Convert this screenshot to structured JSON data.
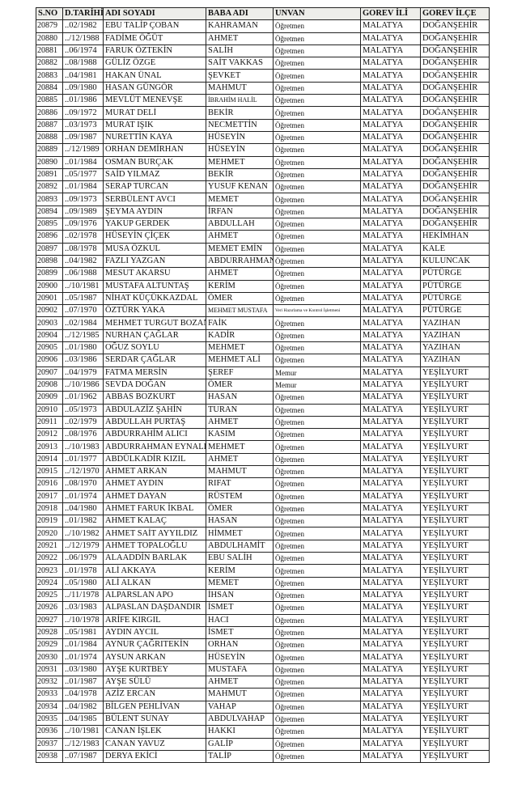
{
  "headers": [
    "S.NO",
    "D.TARİHİ",
    "ADI SOYADI",
    "BABA ADI",
    "UNVAN",
    "GOREV İLİ",
    "GOREV İLÇE"
  ],
  "rows": [
    [
      "20879",
      "..02/1982",
      "EBU TALİP ÇOBAN",
      "KAHRAMAN",
      "Öğretmen",
      "MALATYA",
      "DOĞANŞEHİR"
    ],
    [
      "20880",
      "../12/1988",
      "FADİME ÖĞÜT",
      "AHMET",
      "Öğretmen",
      "MALATYA",
      "DOĞANŞEHİR"
    ],
    [
      "20881",
      "..06/1974",
      "FARUK ÖZTEKİN",
      "SALİH",
      "Öğretmen",
      "MALATYA",
      "DOĞANŞEHİR"
    ],
    [
      "20882",
      "..08/1988",
      "GÜLİZ ÖZGE",
      "SAİT VAKKAS",
      "Öğretmen",
      "MALATYA",
      "DOĞANŞEHİR"
    ],
    [
      "20883",
      "..04/1981",
      "HAKAN ÜNAL",
      "ŞEVKET",
      "Öğretmen",
      "MALATYA",
      "DOĞANŞEHİR"
    ],
    [
      "20884",
      "..09/1980",
      "HASAN GÜNGÖR",
      "MAHMUT",
      "Öğretmen",
      "MALATYA",
      "DOĞANŞEHİR"
    ],
    [
      "20885",
      "..01/1986",
      "MEVLÜT MENEVŞE",
      "İBRAHİM HALİL",
      "Öğretmen",
      "MALATYA",
      "DOĞANŞEHİR"
    ],
    [
      "20886",
      "..09/1972",
      "MURAT DELİ",
      "BEKİR",
      "Öğretmen",
      "MALATYA",
      "DOĞANŞEHİR"
    ],
    [
      "20887",
      "..03/1973",
      "MURAT IŞIK",
      "NECMETTİN",
      "Öğretmen",
      "MALATYA",
      "DOĞANŞEHİR"
    ],
    [
      "20888",
      "..09/1987",
      "NURETTİN KAYA",
      "HÜSEYİN",
      "Öğretmen",
      "MALATYA",
      "DOĞANŞEHİR"
    ],
    [
      "20889",
      "../12/1989",
      "ORHAN DEMİRHAN",
      "HÜSEYİN",
      "Öğretmen",
      "MALATYA",
      "DOĞANŞEHİR"
    ],
    [
      "20890",
      "..01/1984",
      "OSMAN BURÇAK",
      "MEHMET",
      "Öğretmen",
      "MALATYA",
      "DOĞANŞEHİR"
    ],
    [
      "20891",
      "..05/1977",
      "SAİD YILMAZ",
      "BEKİR",
      "Öğretmen",
      "MALATYA",
      "DOĞANŞEHİR"
    ],
    [
      "20892",
      "..01/1984",
      "SERAP TURCAN",
      "YUSUF KENAN",
      "Öğretmen",
      "MALATYA",
      "DOĞANŞEHİR"
    ],
    [
      "20893",
      "..09/1973",
      "SERBÜLENT AVCI",
      "MEMET",
      "Öğretmen",
      "MALATYA",
      "DOĞANŞEHİR"
    ],
    [
      "20894",
      "..09/1989",
      "ŞEYMA AYDIN",
      "İRFAN",
      "Öğretmen",
      "MALATYA",
      "DOĞANŞEHİR"
    ],
    [
      "20895",
      "..09/1976",
      "YAKUP GERDEK",
      "ABDULLAH",
      "Öğretmen",
      "MALATYA",
      "DOĞANŞEHİR"
    ],
    [
      "20896",
      "..02/1978",
      "HÜSEYİN ÇİÇEK",
      "AHMET",
      "Öğretmen",
      "MALATYA",
      "HEKİMHAN"
    ],
    [
      "20897",
      "..08/1978",
      "MUSA ÖZKUL",
      "MEMET EMİN",
      "Öğretmen",
      "MALATYA",
      "KALE"
    ],
    [
      "20898",
      "..04/1982",
      "FAZLI YAZGAN",
      "ABDURRAHMAN",
      "Öğretmen",
      "MALATYA",
      "KULUNCAK"
    ],
    [
      "20899",
      "..06/1988",
      "MESUT AKARSU",
      "AHMET",
      "Öğretmen",
      "MALATYA",
      "PÜTÜRGE"
    ],
    [
      "20900",
      "../10/1981",
      "MUSTAFA ALTUNTAŞ",
      "KERİM",
      "Öğretmen",
      "MALATYA",
      "PÜTÜRGE"
    ],
    [
      "20901",
      "..05/1987",
      "NİHAT KÜÇÜKKAZDAL",
      "ÖMER",
      "Öğretmen",
      "MALATYA",
      "PÜTÜRGE"
    ],
    [
      "20902",
      "..07/1970",
      "ÖZTÜRK YAKA",
      "MEHMET MUSTAFA",
      "Veri Hazırlama ve Kontrol İşletmeni",
      "MALATYA",
      "PÜTÜRGE"
    ],
    [
      "20903",
      "..02/1984",
      "MEHMET TURGUT BOZAN",
      "FAİK",
      "Öğretmen",
      "MALATYA",
      "YAZIHAN"
    ],
    [
      "20904",
      "../12/1985",
      "NURHAN ÇAĞLAR",
      "KADİR",
      "Öğretmen",
      "MALATYA",
      "YAZIHAN"
    ],
    [
      "20905",
      "..01/1980",
      "OĞUZ SOYLU",
      "MEHMET",
      "Öğretmen",
      "MALATYA",
      "YAZIHAN"
    ],
    [
      "20906",
      "..03/1986",
      "SERDAR ÇAĞLAR",
      "MEHMET ALİ",
      "Öğretmen",
      "MALATYA",
      "YAZIHAN"
    ],
    [
      "20907",
      "..04/1979",
      "FATMA MERSİN",
      "ŞEREF",
      "Memur",
      "MALATYA",
      "YEŞİLYURT"
    ],
    [
      "20908",
      "../10/1986",
      "SEVDA DOĞAN",
      "ÖMER",
      "Memur",
      "MALATYA",
      "YEŞİLYURT"
    ],
    [
      "20909",
      "..01/1962",
      "ABBAS BOZKURT",
      "HASAN",
      "Öğretmen",
      "MALATYA",
      "YEŞİLYURT"
    ],
    [
      "20910",
      "..05/1973",
      "ABDULAZİZ ŞAHİN",
      "TURAN",
      "Öğretmen",
      "MALATYA",
      "YEŞİLYURT"
    ],
    [
      "20911",
      "..02/1979",
      "ABDULLAH PURTAŞ",
      "AHMET",
      "Öğretmen",
      "MALATYA",
      "YEŞİLYURT"
    ],
    [
      "20912",
      "..08/1976",
      "ABDURRAHİM ALICI",
      "KASIM",
      "Öğretmen",
      "MALATYA",
      "YEŞİLYURT"
    ],
    [
      "20913",
      "../10/1983",
      "ABDURRAHMAN EYNALLI",
      "MEHMET",
      "Öğretmen",
      "MALATYA",
      "YEŞİLYURT"
    ],
    [
      "20914",
      "..01/1977",
      "ABDÜLKADİR KIZIL",
      "AHMET",
      "Öğretmen",
      "MALATYA",
      "YEŞİLYURT"
    ],
    [
      "20915",
      "../12/1970",
      "AHMET ARKAN",
      "MAHMUT",
      "Öğretmen",
      "MALATYA",
      "YEŞİLYURT"
    ],
    [
      "20916",
      "..08/1970",
      "AHMET AYDIN",
      "RIFAT",
      "Öğretmen",
      "MALATYA",
      "YEŞİLYURT"
    ],
    [
      "20917",
      "..01/1974",
      "AHMET DAYAN",
      "RÜSTEM",
      "Öğretmen",
      "MALATYA",
      "YEŞİLYURT"
    ],
    [
      "20918",
      "..04/1980",
      "AHMET FARUK İKBAL",
      "ÖMER",
      "Öğretmen",
      "MALATYA",
      "YEŞİLYURT"
    ],
    [
      "20919",
      "..01/1982",
      "AHMET KALAÇ",
      "HASAN",
      "Öğretmen",
      "MALATYA",
      "YEŞİLYURT"
    ],
    [
      "20920",
      "../10/1982",
      "AHMET SAİT AYYILDIZ",
      "HİMMET",
      "Öğretmen",
      "MALATYA",
      "YEŞİLYURT"
    ],
    [
      "20921",
      "../12/1979",
      "AHMET TOPALOĞLU",
      "ABDULHAMİT",
      "Öğretmen",
      "MALATYA",
      "YEŞİLYURT"
    ],
    [
      "20922",
      "..06/1979",
      "ALAADDİN BARLAK",
      "EBU SALİH",
      "Öğretmen",
      "MALATYA",
      "YEŞİLYURT"
    ],
    [
      "20923",
      "..01/1978",
      "ALİ AKKAYA",
      "KERİM",
      "Öğretmen",
      "MALATYA",
      "YEŞİLYURT"
    ],
    [
      "20924",
      "..05/1980",
      "ALİ ALKAN",
      "MEMET",
      "Öğretmen",
      "MALATYA",
      "YEŞİLYURT"
    ],
    [
      "20925",
      "../11/1978",
      "ALPARSLAN APO",
      "İHSAN",
      "Öğretmen",
      "MALATYA",
      "YEŞİLYURT"
    ],
    [
      "20926",
      "..03/1983",
      "ALPASLAN DAŞDANDIR",
      "İSMET",
      "Öğretmen",
      "MALATYA",
      "YEŞİLYURT"
    ],
    [
      "20927",
      "../10/1978",
      "ARİFE KIRGIL",
      "HACI",
      "Öğretmen",
      "MALATYA",
      "YEŞİLYURT"
    ],
    [
      "20928",
      "..05/1981",
      "AYDIN AYCIL",
      "İSMET",
      "Öğretmen",
      "MALATYA",
      "YEŞİLYURT"
    ],
    [
      "20929",
      "..01/1984",
      "AYNUR ÇAĞRITEKİN",
      "ORHAN",
      "Öğretmen",
      "MALATYA",
      "YEŞİLYURT"
    ],
    [
      "20930",
      "..01/1974",
      "AYSUN ARKAN",
      "HÜSEYİN",
      "Öğretmen",
      "MALATYA",
      "YEŞİLYURT"
    ],
    [
      "20931",
      "..03/1980",
      "AYŞE KURTBEY",
      "MUSTAFA",
      "Öğretmen",
      "MALATYA",
      "YEŞİLYURT"
    ],
    [
      "20932",
      "..01/1987",
      "AYŞE SÜLÜ",
      "AHMET",
      "Öğretmen",
      "MALATYA",
      "YEŞİLYURT"
    ],
    [
      "20933",
      "..04/1978",
      "AZİZ ERCAN",
      "MAHMUT",
      "Öğretmen",
      "MALATYA",
      "YEŞİLYURT"
    ],
    [
      "20934",
      "..04/1982",
      "BİLGEN PEHLİVAN",
      "VAHAP",
      "Öğretmen",
      "MALATYA",
      "YEŞİLYURT"
    ],
    [
      "20935",
      "..04/1985",
      "BÜLENT SUNAY",
      "ABDULVAHAP",
      "Öğretmen",
      "MALATYA",
      "YEŞİLYURT"
    ],
    [
      "20936",
      "../10/1981",
      "CANAN İŞLEK",
      "HAKKI",
      "Öğretmen",
      "MALATYA",
      "YEŞİLYURT"
    ],
    [
      "20937",
      "../12/1983",
      "CANAN YAVUZ",
      "GALİP",
      "Öğretmen",
      "MALATYA",
      "YEŞİLYURT"
    ],
    [
      "20938",
      "..07/1987",
      "DERYA EKİCİ",
      "TALİP",
      "Öğretmen",
      "MALATYA",
      "YEŞİLYURT"
    ]
  ]
}
